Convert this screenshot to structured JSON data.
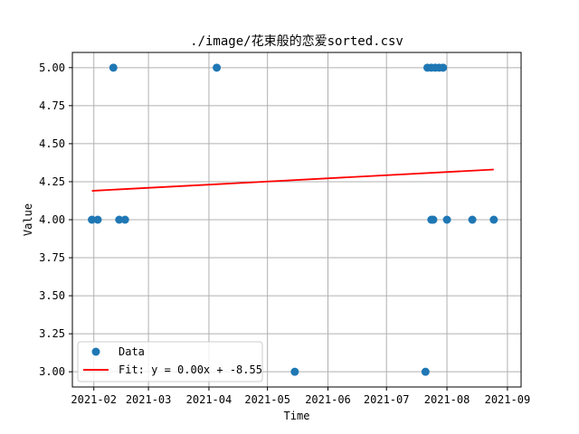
{
  "chart_data": {
    "type": "scatter",
    "title": "./image/花束般的恋爱sorted.csv",
    "xlabel": "Time",
    "ylabel": "Value",
    "x_axis_type": "date",
    "xlim": [
      "2021-01-21",
      "2021-09-08"
    ],
    "ylim": [
      2.9,
      5.1
    ],
    "grid": true,
    "legend_placement": "lower-left",
    "x_ticks": [
      "2021-02",
      "2021-03",
      "2021-04",
      "2021-05",
      "2021-06",
      "2021-07",
      "2021-08",
      "2021-09"
    ],
    "x_tick_dates": [
      "2021-02-01",
      "2021-03-01",
      "2021-04-01",
      "2021-05-01",
      "2021-06-01",
      "2021-07-01",
      "2021-08-01",
      "2021-09-01"
    ],
    "y_ticks": [
      "3.00",
      "3.25",
      "3.50",
      "3.75",
      "4.00",
      "4.25",
      "4.50",
      "4.75",
      "5.00"
    ],
    "series": [
      {
        "name": "Data",
        "kind": "scatter",
        "color": "#1f77b4",
        "points": [
          {
            "x": "2021-01-31",
            "y": 4
          },
          {
            "x": "2021-02-03",
            "y": 4
          },
          {
            "x": "2021-02-11",
            "y": 5
          },
          {
            "x": "2021-02-14",
            "y": 4
          },
          {
            "x": "2021-02-17",
            "y": 4
          },
          {
            "x": "2021-04-05",
            "y": 5
          },
          {
            "x": "2021-05-15",
            "y": 3
          },
          {
            "x": "2021-07-21",
            "y": 3
          },
          {
            "x": "2021-07-22",
            "y": 5
          },
          {
            "x": "2021-07-24",
            "y": 5
          },
          {
            "x": "2021-07-24",
            "y": 4
          },
          {
            "x": "2021-07-25",
            "y": 4
          },
          {
            "x": "2021-07-26",
            "y": 5
          },
          {
            "x": "2021-07-28",
            "y": 5
          },
          {
            "x": "2021-07-30",
            "y": 5
          },
          {
            "x": "2021-08-01",
            "y": 4
          },
          {
            "x": "2021-08-14",
            "y": 4
          },
          {
            "x": "2021-08-25",
            "y": 4
          }
        ]
      },
      {
        "name": "Fit: y = 0.00x + -8.55",
        "kind": "line",
        "color": "#ff0000",
        "points": [
          {
            "x": "2021-01-31",
            "y": 4.19
          },
          {
            "x": "2021-08-25",
            "y": 4.33
          }
        ]
      }
    ]
  }
}
